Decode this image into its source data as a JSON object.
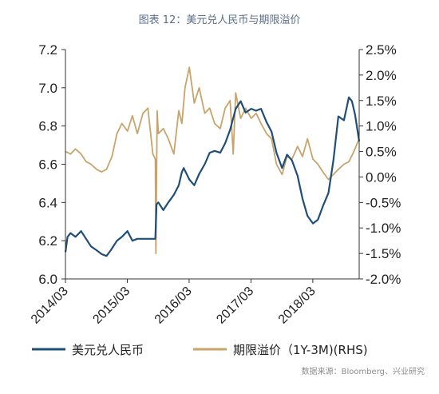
{
  "title": "图表 12：美元兑人民币与期限溢价",
  "source": "数据来源：Bloomberg、兴业研究",
  "colors": {
    "series1": "#1f4e79",
    "series2": "#c9a46a",
    "axis": "#333333"
  },
  "chart_data": {
    "type": "line",
    "title": "图表 12：美元兑人民币与期限溢价",
    "legend_position": "bottom",
    "grid": false,
    "x_range": [
      2014.167,
      2018.917
    ],
    "x_ticks": [
      {
        "value": 2014.167,
        "label": "2014/03"
      },
      {
        "value": 2015.167,
        "label": "2015/03"
      },
      {
        "value": 2016.167,
        "label": "2016/03"
      },
      {
        "value": 2017.167,
        "label": "2017/03"
      },
      {
        "value": 2018.167,
        "label": "2018/03"
      }
    ],
    "y_left": {
      "range": [
        6.0,
        7.2
      ],
      "ticks": [
        "6.0",
        "6.2",
        "6.4",
        "6.6",
        "6.8",
        "7.0",
        "7.2"
      ],
      "tick_values": [
        6.0,
        6.2,
        6.4,
        6.6,
        6.8,
        7.0,
        7.2
      ]
    },
    "y_right": {
      "range": [
        -0.02,
        0.025
      ],
      "ticks": [
        "-2.0%",
        "-1.5%",
        "-1.0%",
        "-0.5%",
        "0.0%",
        "0.5%",
        "1.0%",
        "1.5%",
        "2.0%",
        "2.5%"
      ],
      "tick_values": [
        -0.02,
        -0.015,
        -0.01,
        -0.005,
        0,
        0.005,
        0.01,
        0.015,
        0.02,
        0.025
      ]
    },
    "series": [
      {
        "name": "美元兑人民币",
        "axis": "left",
        "points": [
          [
            2014.167,
            6.14
          ],
          [
            2014.2,
            6.22
          ],
          [
            2014.25,
            6.24
          ],
          [
            2014.33,
            6.22
          ],
          [
            2014.42,
            6.25
          ],
          [
            2014.5,
            6.21
          ],
          [
            2014.58,
            6.17
          ],
          [
            2014.67,
            6.15
          ],
          [
            2014.75,
            6.13
          ],
          [
            2014.83,
            6.12
          ],
          [
            2014.9,
            6.15
          ],
          [
            2015.0,
            6.2
          ],
          [
            2015.08,
            6.22
          ],
          [
            2015.17,
            6.25
          ],
          [
            2015.25,
            6.2
          ],
          [
            2015.33,
            6.21
          ],
          [
            2015.42,
            6.21
          ],
          [
            2015.5,
            6.21
          ],
          [
            2015.58,
            6.21
          ],
          [
            2015.62,
            6.21
          ],
          [
            2015.64,
            6.39
          ],
          [
            2015.67,
            6.4
          ],
          [
            2015.75,
            6.36
          ],
          [
            2015.83,
            6.4
          ],
          [
            2015.92,
            6.44
          ],
          [
            2016.0,
            6.49
          ],
          [
            2016.05,
            6.56
          ],
          [
            2016.08,
            6.58
          ],
          [
            2016.17,
            6.52
          ],
          [
            2016.25,
            6.49
          ],
          [
            2016.33,
            6.55
          ],
          [
            2016.42,
            6.6
          ],
          [
            2016.5,
            6.66
          ],
          [
            2016.58,
            6.67
          ],
          [
            2016.67,
            6.66
          ],
          [
            2016.75,
            6.71
          ],
          [
            2016.83,
            6.78
          ],
          [
            2016.92,
            6.89
          ],
          [
            2017.0,
            6.93
          ],
          [
            2017.08,
            6.87
          ],
          [
            2017.17,
            6.89
          ],
          [
            2017.25,
            6.88
          ],
          [
            2017.33,
            6.89
          ],
          [
            2017.42,
            6.82
          ],
          [
            2017.5,
            6.77
          ],
          [
            2017.58,
            6.66
          ],
          [
            2017.67,
            6.58
          ],
          [
            2017.75,
            6.65
          ],
          [
            2017.83,
            6.62
          ],
          [
            2017.92,
            6.54
          ],
          [
            2018.0,
            6.42
          ],
          [
            2018.08,
            6.33
          ],
          [
            2018.17,
            6.29
          ],
          [
            2018.25,
            6.31
          ],
          [
            2018.33,
            6.38
          ],
          [
            2018.42,
            6.45
          ],
          [
            2018.5,
            6.62
          ],
          [
            2018.58,
            6.85
          ],
          [
            2018.67,
            6.83
          ],
          [
            2018.75,
            6.95
          ],
          [
            2018.8,
            6.93
          ],
          [
            2018.85,
            6.86
          ],
          [
            2018.917,
            6.72
          ]
        ]
      },
      {
        "name": "期限溢价（1Y-3M)(RHS)",
        "axis": "right",
        "points": [
          [
            2014.167,
            0.005
          ],
          [
            2014.25,
            0.0045
          ],
          [
            2014.33,
            0.0055
          ],
          [
            2014.42,
            0.0045
          ],
          [
            2014.5,
            0.003
          ],
          [
            2014.58,
            0.0025
          ],
          [
            2014.67,
            0.0015
          ],
          [
            2014.75,
            0.001
          ],
          [
            2014.83,
            0.0015
          ],
          [
            2014.92,
            0.004
          ],
          [
            2015.0,
            0.0085
          ],
          [
            2015.08,
            0.0105
          ],
          [
            2015.17,
            0.009
          ],
          [
            2015.25,
            0.012
          ],
          [
            2015.33,
            0.0085
          ],
          [
            2015.42,
            0.0125
          ],
          [
            2015.5,
            0.0135
          ],
          [
            2015.58,
            0.0045
          ],
          [
            2015.62,
            0.0035
          ],
          [
            2015.63,
            -0.015
          ],
          [
            2015.65,
            0.013
          ],
          [
            2015.67,
            0.0085
          ],
          [
            2015.75,
            0.0095
          ],
          [
            2015.83,
            0.0075
          ],
          [
            2015.92,
            0.0045
          ],
          [
            2016.0,
            0.013
          ],
          [
            2016.05,
            0.0105
          ],
          [
            2016.1,
            0.0175
          ],
          [
            2016.17,
            0.0215
          ],
          [
            2016.25,
            0.0145
          ],
          [
            2016.33,
            0.0175
          ],
          [
            2016.42,
            0.0125
          ],
          [
            2016.5,
            0.0135
          ],
          [
            2016.58,
            0.0105
          ],
          [
            2016.67,
            0.0095
          ],
          [
            2016.75,
            0.0135
          ],
          [
            2016.83,
            0.015
          ],
          [
            2016.88,
            0.0045
          ],
          [
            2016.92,
            0.0165
          ],
          [
            2017.0,
            0.0115
          ],
          [
            2017.08,
            0.0135
          ],
          [
            2017.17,
            0.0115
          ],
          [
            2017.25,
            0.0125
          ],
          [
            2017.33,
            0.0105
          ],
          [
            2017.42,
            0.0085
          ],
          [
            2017.5,
            0.0075
          ],
          [
            2017.58,
            0.0025
          ],
          [
            2017.67,
            0.0005
          ],
          [
            2017.75,
            0.004
          ],
          [
            2017.83,
            0.0035
          ],
          [
            2017.92,
            0.006
          ],
          [
            2018.0,
            0.004
          ],
          [
            2018.08,
            0.0075
          ],
          [
            2018.17,
            0.0035
          ],
          [
            2018.25,
            0.0025
          ],
          [
            2018.33,
            0.001
          ],
          [
            2018.42,
            -0.0005
          ],
          [
            2018.5,
            0.0005
          ],
          [
            2018.58,
            0.0015
          ],
          [
            2018.67,
            0.0025
          ],
          [
            2018.75,
            0.003
          ],
          [
            2018.83,
            0.005
          ],
          [
            2018.917,
            0.0075
          ]
        ]
      }
    ]
  }
}
